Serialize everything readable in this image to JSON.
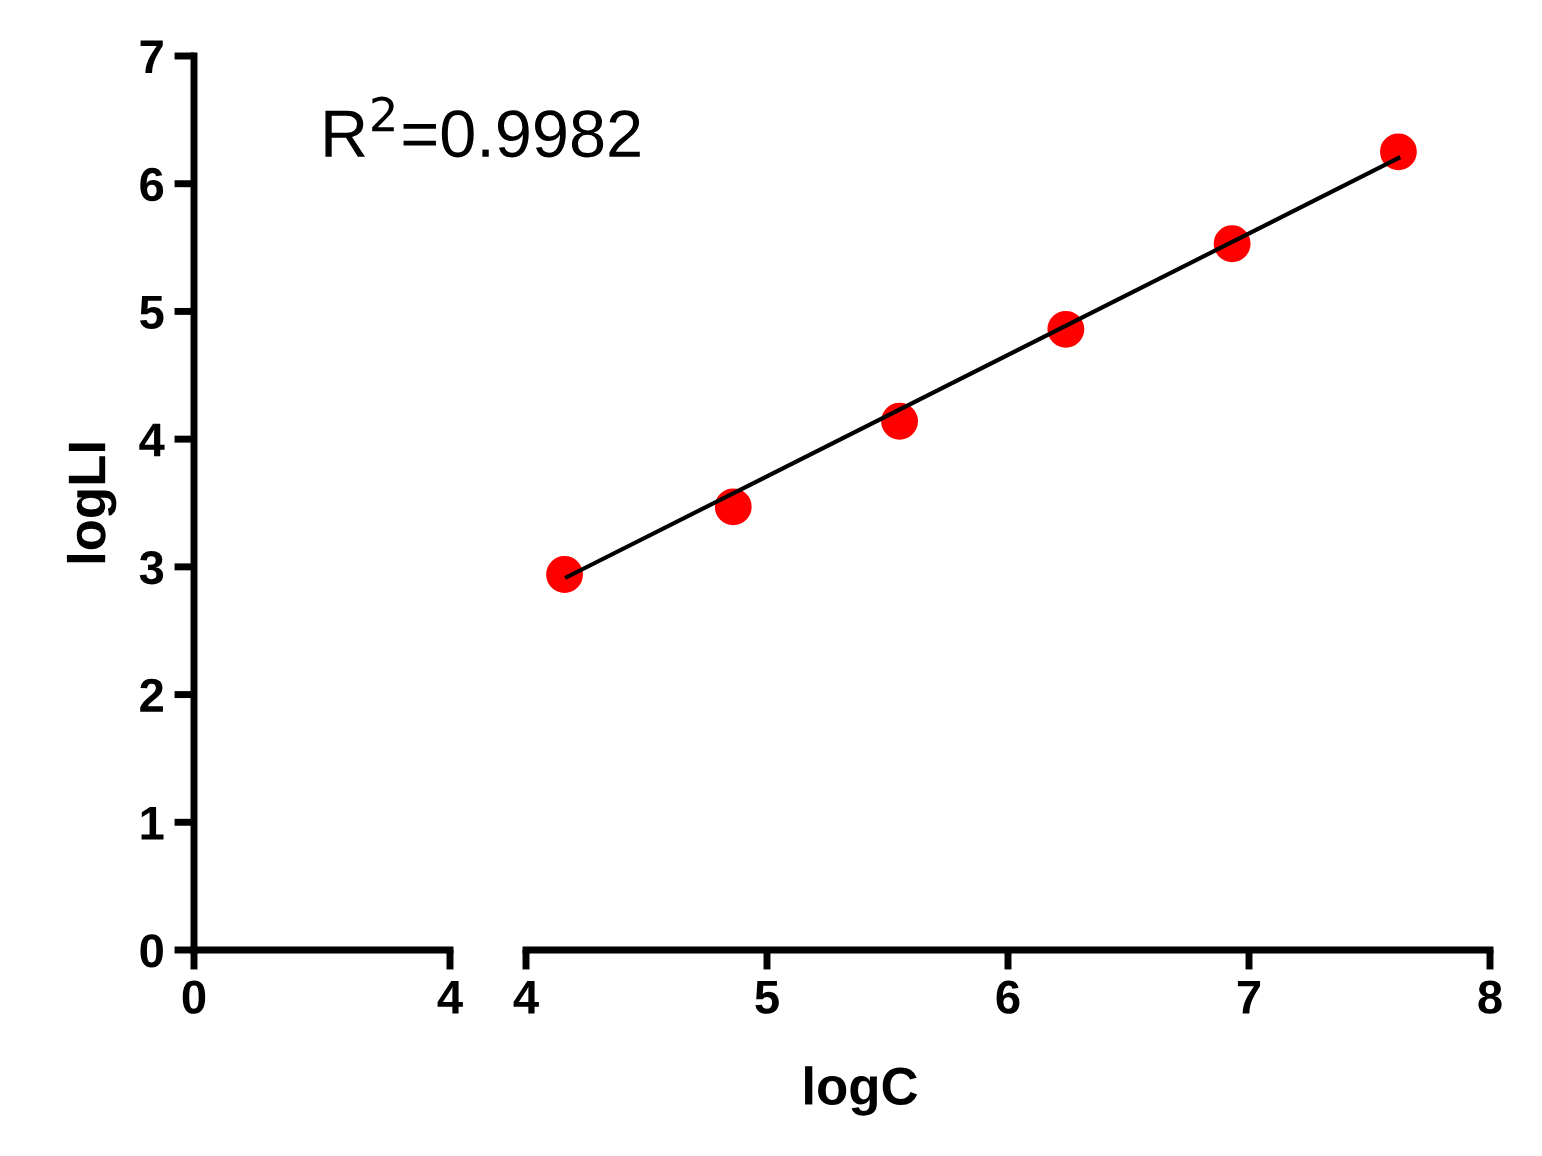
{
  "chart_data": [
    {
      "type": "scatter",
      "xlim": [
        0,
        4
      ],
      "xticks": [
        0,
        4
      ],
      "ylim": [
        0,
        7
      ],
      "yticks": [
        0,
        1,
        2,
        3,
        4,
        5,
        6,
        7
      ],
      "ylabel": "logLI",
      "annotations": [
        "R$^{2}$=0.9982"
      ]
    },
    {
      "type": "scatter",
      "xlim": [
        4,
        8
      ],
      "xticks": [
        4,
        5,
        6,
        7,
        8
      ],
      "ylim": [
        0,
        7
      ],
      "xlabel": "logC",
      "tick_labels": "x",
      "series": [
        {
          "marker": "circle",
          "color": "#ff0000",
          "x": [
            4.16,
            4.86,
            5.55,
            6.24,
            6.93,
            7.62
          ],
          "values": [
            2.94,
            3.47,
            4.14,
            4.86,
            5.53,
            6.25
          ]
        },
        {
          "type": "line",
          "color": "#000000",
          "x": [
            4.17,
            7.62
          ],
          "values": [
            2.92,
            6.2
          ]
        }
      ]
    }
  ]
}
